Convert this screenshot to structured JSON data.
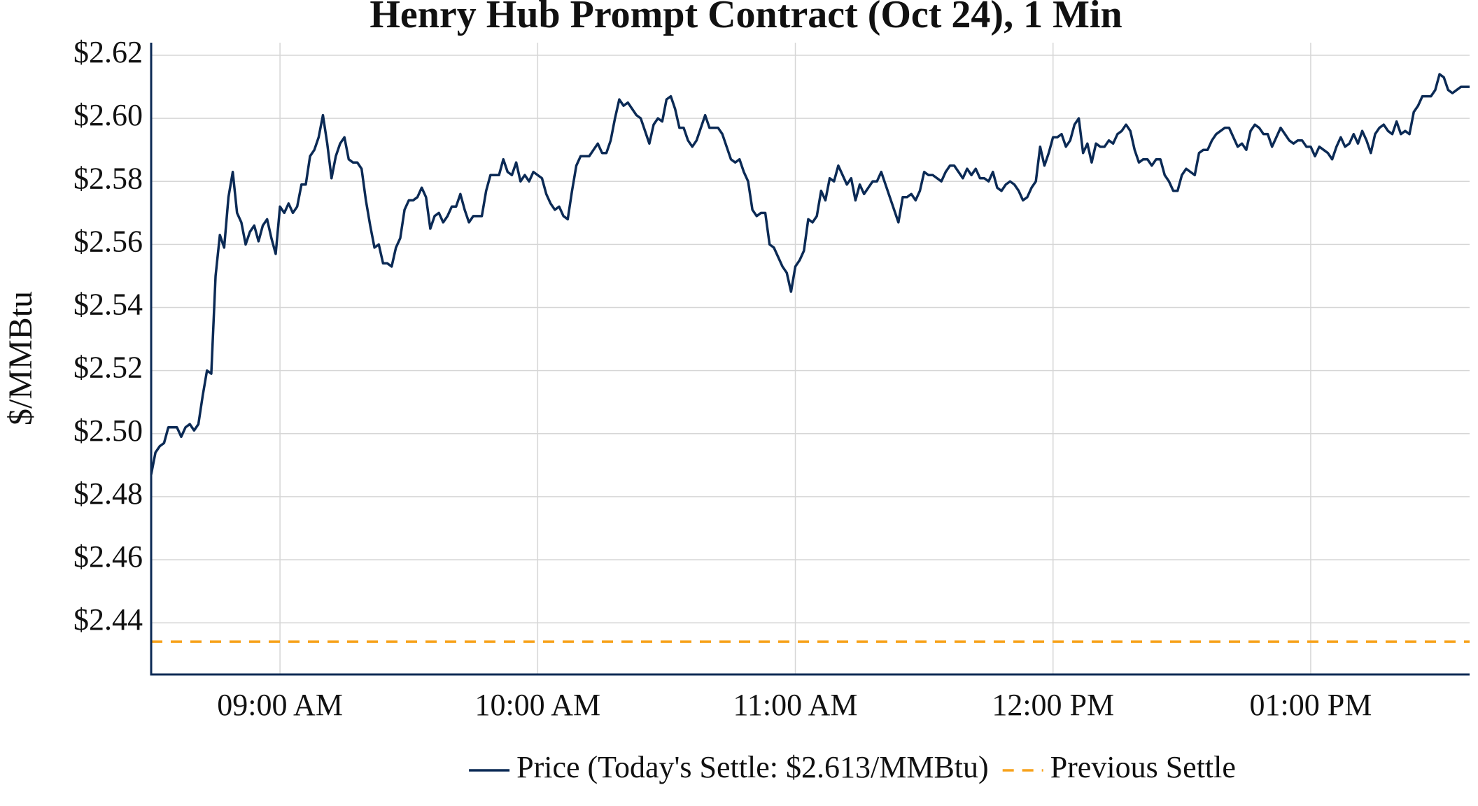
{
  "chart_data": {
    "type": "line",
    "title": "Henry Hub Prompt Contract (Oct 24), 1 Min",
    "ylabel": "$/MMBtu",
    "x": [
      "08:30",
      "08:31",
      "08:32",
      "08:33",
      "08:34",
      "08:35",
      "08:36",
      "08:37",
      "08:38",
      "08:39",
      "08:40",
      "08:41",
      "08:42",
      "08:43",
      "08:44",
      "08:45",
      "08:46",
      "08:47",
      "08:48",
      "08:49",
      "08:50",
      "08:51",
      "08:52",
      "08:53",
      "08:54",
      "08:55",
      "08:56",
      "08:57",
      "08:58",
      "08:59",
      "09:00",
      "09:01",
      "09:02",
      "09:03",
      "09:04",
      "09:05",
      "09:06",
      "09:07",
      "09:08",
      "09:09",
      "09:10",
      "09:11",
      "09:12",
      "09:13",
      "09:14",
      "09:15",
      "09:16",
      "09:17",
      "09:18",
      "09:19",
      "09:20",
      "09:21",
      "09:22",
      "09:23",
      "09:24",
      "09:25",
      "09:26",
      "09:27",
      "09:28",
      "09:29",
      "09:30",
      "09:31",
      "09:32",
      "09:33",
      "09:34",
      "09:35",
      "09:36",
      "09:37",
      "09:38",
      "09:39",
      "09:40",
      "09:41",
      "09:42",
      "09:43",
      "09:44",
      "09:45",
      "09:46",
      "09:47",
      "09:48",
      "09:49",
      "09:50",
      "09:51",
      "09:52",
      "09:53",
      "09:54",
      "09:55",
      "09:56",
      "09:57",
      "09:58",
      "09:59",
      "10:00",
      "10:01",
      "10:02",
      "10:03",
      "10:04",
      "10:05",
      "10:06",
      "10:07",
      "10:08",
      "10:09",
      "10:10",
      "10:11",
      "10:12",
      "10:13",
      "10:14",
      "10:15",
      "10:16",
      "10:17",
      "10:18",
      "10:19",
      "10:20",
      "10:21",
      "10:22",
      "10:23",
      "10:24",
      "10:25",
      "10:26",
      "10:27",
      "10:28",
      "10:29",
      "10:30",
      "10:31",
      "10:32",
      "10:33",
      "10:34",
      "10:35",
      "10:36",
      "10:37",
      "10:38",
      "10:39",
      "10:40",
      "10:41",
      "10:42",
      "10:43",
      "10:44",
      "10:45",
      "10:46",
      "10:47",
      "10:48",
      "10:49",
      "10:50",
      "10:51",
      "10:52",
      "10:53",
      "10:54",
      "10:55",
      "10:56",
      "10:57",
      "10:58",
      "10:59",
      "11:00",
      "11:01",
      "11:02",
      "11:03",
      "11:04",
      "11:05",
      "11:06",
      "11:07",
      "11:08",
      "11:09",
      "11:10",
      "11:11",
      "11:12",
      "11:13",
      "11:14",
      "11:15",
      "11:16",
      "11:17",
      "11:18",
      "11:19",
      "11:20",
      "11:21",
      "11:22",
      "11:23",
      "11:24",
      "11:25",
      "11:26",
      "11:27",
      "11:28",
      "11:29",
      "11:30",
      "11:31",
      "11:32",
      "11:33",
      "11:34",
      "11:35",
      "11:36",
      "11:37",
      "11:38",
      "11:39",
      "11:40",
      "11:41",
      "11:42",
      "11:43",
      "11:44",
      "11:45",
      "11:46",
      "11:47",
      "11:48",
      "11:49",
      "11:50",
      "11:51",
      "11:52",
      "11:53",
      "11:54",
      "11:55",
      "11:56",
      "11:57",
      "11:58",
      "11:59",
      "12:00",
      "12:01",
      "12:02",
      "12:03",
      "12:04",
      "12:05",
      "12:06",
      "12:07",
      "12:08",
      "12:09",
      "12:10",
      "12:11",
      "12:12",
      "12:13",
      "12:14",
      "12:15",
      "12:16",
      "12:17",
      "12:18",
      "12:19",
      "12:20",
      "12:21",
      "12:22",
      "12:23",
      "12:24",
      "12:25",
      "12:26",
      "12:27",
      "12:28",
      "12:29",
      "12:30",
      "12:31",
      "12:32",
      "12:33",
      "12:34",
      "12:35",
      "12:36",
      "12:37",
      "12:38",
      "12:39",
      "12:40",
      "12:41",
      "12:42",
      "12:43",
      "12:44",
      "12:45",
      "12:46",
      "12:47",
      "12:48",
      "12:49",
      "12:50",
      "12:51",
      "12:52",
      "12:53",
      "12:54",
      "12:55",
      "12:56",
      "12:57",
      "12:58",
      "12:59",
      "13:00",
      "13:01",
      "13:02",
      "13:03",
      "13:04",
      "13:05",
      "13:06",
      "13:07",
      "13:08",
      "13:09",
      "13:10",
      "13:11",
      "13:12",
      "13:13",
      "13:14",
      "13:15",
      "13:16",
      "13:17",
      "13:18",
      "13:19",
      "13:20",
      "13:21",
      "13:22",
      "13:23",
      "13:24",
      "13:25",
      "13:26",
      "13:27",
      "13:28",
      "13:29",
      "13:30",
      "13:31",
      "13:32",
      "13:33",
      "13:34",
      "13:35",
      "13:36",
      "13:37"
    ],
    "series": [
      {
        "name": "Price (Today's Settle: $2.613/MMBtu)",
        "color": "#0b2a55",
        "values": [
          2.487,
          2.494,
          2.496,
          2.497,
          2.502,
          2.502,
          2.502,
          2.499,
          2.502,
          2.503,
          2.501,
          2.503,
          2.512,
          2.52,
          2.519,
          2.55,
          2.563,
          2.559,
          2.575,
          2.583,
          2.57,
          2.567,
          2.56,
          2.564,
          2.566,
          2.561,
          2.566,
          2.568,
          2.562,
          2.557,
          2.572,
          2.57,
          2.573,
          2.57,
          2.572,
          2.579,
          2.579,
          2.588,
          2.59,
          2.594,
          2.601,
          2.592,
          2.581,
          2.588,
          2.592,
          2.594,
          2.587,
          2.586,
          2.586,
          2.584,
          2.574,
          2.566,
          2.559,
          2.56,
          2.554,
          2.554,
          2.553,
          2.559,
          2.562,
          2.571,
          2.574,
          2.574,
          2.575,
          2.578,
          2.575,
          2.565,
          2.569,
          2.57,
          2.567,
          2.569,
          2.572,
          2.572,
          2.576,
          2.571,
          2.567,
          2.569,
          2.569,
          2.569,
          2.577,
          2.582,
          2.582,
          2.582,
          2.587,
          2.583,
          2.582,
          2.586,
          2.58,
          2.582,
          2.58,
          2.583,
          2.582,
          2.581,
          2.576,
          2.573,
          2.571,
          2.572,
          2.569,
          2.568,
          2.577,
          2.585,
          2.588,
          2.588,
          2.588,
          2.59,
          2.592,
          2.589,
          2.589,
          2.593,
          2.6,
          2.606,
          2.604,
          2.605,
          2.603,
          2.601,
          2.6,
          2.596,
          2.592,
          2.598,
          2.6,
          2.599,
          2.606,
          2.607,
          2.603,
          2.597,
          2.597,
          2.593,
          2.591,
          2.593,
          2.597,
          2.601,
          2.597,
          2.597,
          2.597,
          2.595,
          2.591,
          2.587,
          2.586,
          2.587,
          2.583,
          2.58,
          2.571,
          2.569,
          2.57,
          2.57,
          2.56,
          2.559,
          2.556,
          2.553,
          2.551,
          2.545,
          2.553,
          2.555,
          2.558,
          2.568,
          2.567,
          2.569,
          2.577,
          2.574,
          2.581,
          2.58,
          2.585,
          2.582,
          2.579,
          2.581,
          2.574,
          2.579,
          2.576,
          2.578,
          2.58,
          2.58,
          2.583,
          2.579,
          2.575,
          2.571,
          2.567,
          2.575,
          2.575,
          2.576,
          2.574,
          2.577,
          2.583,
          2.582,
          2.582,
          2.581,
          2.58,
          2.583,
          2.585,
          2.585,
          2.583,
          2.581,
          2.584,
          2.582,
          2.584,
          2.581,
          2.581,
          2.58,
          2.583,
          2.578,
          2.577,
          2.579,
          2.58,
          2.579,
          2.577,
          2.574,
          2.575,
          2.578,
          2.58,
          2.591,
          2.585,
          2.589,
          2.594,
          2.594,
          2.595,
          2.591,
          2.593,
          2.598,
          2.6,
          2.589,
          2.592,
          2.586,
          2.592,
          2.591,
          2.591,
          2.593,
          2.592,
          2.595,
          2.596,
          2.598,
          2.596,
          2.59,
          2.586,
          2.587,
          2.587,
          2.585,
          2.587,
          2.587,
          2.582,
          2.58,
          2.577,
          2.577,
          2.582,
          2.584,
          2.583,
          2.582,
          2.589,
          2.59,
          2.59,
          2.593,
          2.595,
          2.596,
          2.597,
          2.597,
          2.594,
          2.591,
          2.592,
          2.59,
          2.596,
          2.598,
          2.597,
          2.595,
          2.595,
          2.591,
          2.594,
          2.597,
          2.595,
          2.593,
          2.592,
          2.593,
          2.593,
          2.591,
          2.591,
          2.588,
          2.591,
          2.59,
          2.589,
          2.587,
          2.591,
          2.594,
          2.591,
          2.592,
          2.595,
          2.592,
          2.596,
          2.593,
          2.589,
          2.595,
          2.597,
          2.598,
          2.596,
          2.595,
          2.599,
          2.595,
          2.596,
          2.595,
          2.602,
          2.604,
          2.607,
          2.607,
          2.607,
          2.609,
          2.614,
          2.613,
          2.609,
          2.608,
          2.609,
          2.61,
          2.61,
          2.61
        ]
      },
      {
        "name": "Previous Settle",
        "color": "#f7a21b",
        "value": 2.434,
        "dash": true
      }
    ],
    "xlim": [
      "08:30",
      "13:37"
    ],
    "xticks": [
      {
        "value": "09:00",
        "label": "09:00 AM"
      },
      {
        "value": "10:00",
        "label": "10:00 AM"
      },
      {
        "value": "11:00",
        "label": "11:00 AM"
      },
      {
        "value": "12:00",
        "label": "12:00 PM"
      },
      {
        "value": "13:00",
        "label": "01:00 PM"
      }
    ],
    "ylim": [
      2.4236,
      2.624
    ],
    "yticks": [
      {
        "value": 2.44,
        "label": "$2.44"
      },
      {
        "value": 2.46,
        "label": "$2.46"
      },
      {
        "value": 2.48,
        "label": "$2.48"
      },
      {
        "value": 2.5,
        "label": "$2.50"
      },
      {
        "value": 2.52,
        "label": "$2.52"
      },
      {
        "value": 2.54,
        "label": "$2.54"
      },
      {
        "value": 2.56,
        "label": "$2.56"
      },
      {
        "value": 2.58,
        "label": "$2.58"
      },
      {
        "value": 2.6,
        "label": "$2.60"
      },
      {
        "value": 2.62,
        "label": "$2.62"
      }
    ],
    "grid": true,
    "legend": "bottom"
  }
}
